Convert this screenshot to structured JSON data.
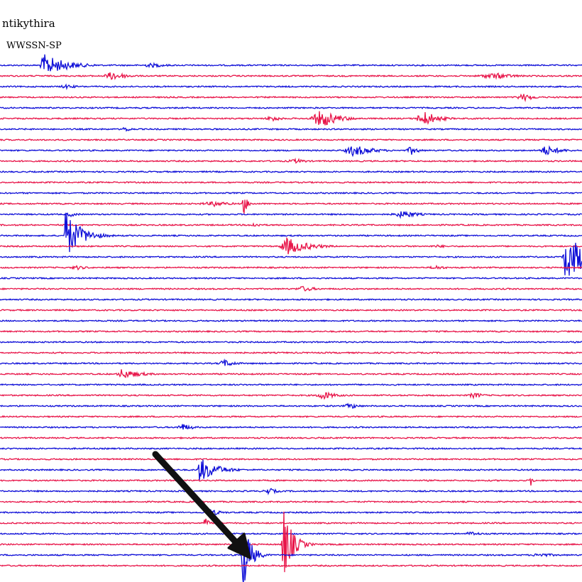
{
  "station": "ntikythira",
  "instrument": "WWSSN-SP"
}
